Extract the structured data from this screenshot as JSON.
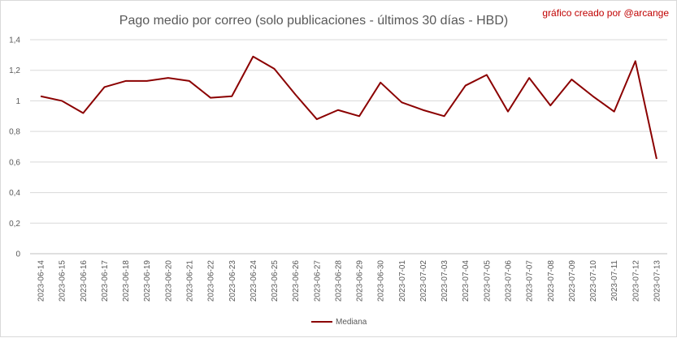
{
  "chart_data": {
    "type": "line",
    "title": "Pago medio por correo (solo publicaciones - últimos 30 días - HBD)",
    "credit": "gráfico creado por @arcange",
    "xlabel": "",
    "ylabel": "",
    "ylim": [
      0,
      1.4
    ],
    "yticks": [
      "0",
      "0,2",
      "0,4",
      "0,6",
      "0,8",
      "1",
      "1,2",
      "1,4"
    ],
    "ytick_values": [
      0,
      0.2,
      0.4,
      0.6,
      0.8,
      1.0,
      1.2,
      1.4
    ],
    "grid": true,
    "legend_position": "bottom",
    "categories": [
      "2023-06-14",
      "2023-06-15",
      "2023-06-16",
      "2023-06-17",
      "2023-06-18",
      "2023-06-19",
      "2023-06-20",
      "2023-06-21",
      "2023-06-22",
      "2023-06-23",
      "2023-06-24",
      "2023-06-25",
      "2023-06-26",
      "2023-06-27",
      "2023-06-28",
      "2023-06-29",
      "2023-06-30",
      "2023-07-01",
      "2023-07-02",
      "2023-07-03",
      "2023-07-04",
      "2023-07-05",
      "2023-07-06",
      "2023-07-07",
      "2023-07-08",
      "2023-07-09",
      "2023-07-10",
      "2023-07-11",
      "2023-07-12",
      "2023-07-13"
    ],
    "series": [
      {
        "name": "Mediana",
        "color": "#8b0000",
        "values": [
          1.03,
          1.0,
          0.92,
          1.09,
          1.13,
          1.13,
          1.15,
          1.13,
          1.02,
          1.03,
          1.29,
          1.21,
          1.04,
          0.88,
          0.94,
          0.9,
          1.12,
          0.99,
          0.94,
          0.9,
          1.1,
          1.17,
          0.93,
          1.15,
          0.97,
          1.14,
          1.03,
          0.93,
          1.26,
          0.62
        ]
      }
    ]
  }
}
